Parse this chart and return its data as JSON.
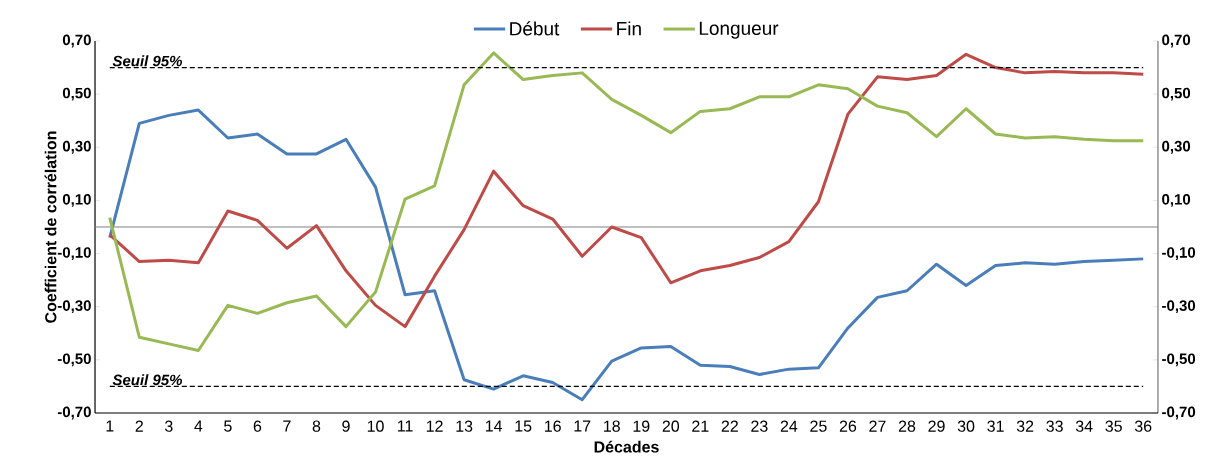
{
  "chart_data": {
    "type": "line",
    "xlabel": "Décades",
    "ylabel": "Coefficient de corrélation",
    "categories": [
      "1",
      "2",
      "3",
      "4",
      "5",
      "6",
      "7",
      "8",
      "9",
      "10",
      "11",
      "12",
      "13",
      "14",
      "15",
      "16",
      "17",
      "18",
      "19",
      "20",
      "21",
      "22",
      "23",
      "24",
      "25",
      "26",
      "27",
      "28",
      "29",
      "30",
      "31",
      "32",
      "33",
      "34",
      "35",
      "36"
    ],
    "series": [
      {
        "name": "Début",
        "color": "#4a7ebb",
        "values": [
          -0.04,
          0.39,
          0.42,
          0.44,
          0.335,
          0.35,
          0.275,
          0.275,
          0.33,
          0.15,
          -0.255,
          -0.24,
          -0.575,
          -0.61,
          -0.56,
          -0.585,
          -0.65,
          -0.505,
          -0.455,
          -0.45,
          -0.52,
          -0.525,
          -0.555,
          -0.535,
          -0.53,
          -0.38,
          -0.265,
          -0.24,
          -0.14,
          -0.22,
          -0.145,
          -0.135,
          -0.14,
          -0.13,
          -0.125,
          -0.12
        ]
      },
      {
        "name": "Fin",
        "color": "#be4b48",
        "values": [
          -0.03,
          -0.13,
          -0.125,
          -0.135,
          0.06,
          0.025,
          -0.08,
          0.005,
          -0.165,
          -0.295,
          -0.375,
          -0.185,
          -0.01,
          0.21,
          0.08,
          0.03,
          -0.11,
          0.0,
          -0.04,
          -0.21,
          -0.165,
          -0.145,
          -0.115,
          -0.055,
          0.095,
          0.425,
          0.565,
          0.555,
          0.57,
          0.65,
          0.6,
          0.58,
          0.585,
          0.58,
          0.58,
          0.575
        ]
      },
      {
        "name": "Longueur",
        "color": "#98b954",
        "values": [
          0.035,
          -0.415,
          -0.44,
          -0.465,
          -0.295,
          -0.325,
          -0.285,
          -0.26,
          -0.375,
          -0.245,
          0.105,
          0.155,
          0.535,
          0.655,
          0.555,
          0.57,
          0.58,
          0.48,
          0.42,
          0.355,
          0.435,
          0.445,
          0.49,
          0.49,
          0.535,
          0.52,
          0.455,
          0.43,
          0.34,
          0.445,
          0.35,
          0.335,
          0.34,
          0.33,
          0.325,
          0.325
        ]
      }
    ],
    "ylim": [
      -0.7,
      0.7
    ],
    "yticks": [
      {
        "value": -0.7,
        "label": "-0,70"
      },
      {
        "value": -0.5,
        "label": "-0,50"
      },
      {
        "value": -0.3,
        "label": "-0,30"
      },
      {
        "value": -0.1,
        "label": "-0,10"
      },
      {
        "value": 0.1,
        "label": "0,10"
      },
      {
        "value": 0.3,
        "label": "0,30"
      },
      {
        "value": 0.5,
        "label": "0,50"
      },
      {
        "value": 0.7,
        "label": "0,70"
      }
    ],
    "y2lim": [
      -0.7,
      0.7
    ],
    "y2ticks": [
      {
        "value": -0.7,
        "label": "-0,70"
      },
      {
        "value": -0.5,
        "label": "-0,50"
      },
      {
        "value": -0.3,
        "label": "-0,30"
      },
      {
        "value": -0.1,
        "label": "-0,10"
      },
      {
        "value": 0.1,
        "label": "0,10"
      },
      {
        "value": 0.3,
        "label": "0,30"
      },
      {
        "value": 0.5,
        "label": "0,50"
      },
      {
        "value": 0.7,
        "label": "0,70"
      }
    ],
    "ref_lines": [
      {
        "axis": "y",
        "value": 0.6,
        "label": "Seuil 95%",
        "color": "#000000",
        "line_style": "dashed"
      },
      {
        "axis": "y",
        "value": -0.6,
        "label": "Seuil 95%",
        "color": "#000000",
        "line_style": "dashed"
      }
    ],
    "grid": false,
    "legend": "top",
    "marker": "none",
    "line_style": "solid"
  }
}
